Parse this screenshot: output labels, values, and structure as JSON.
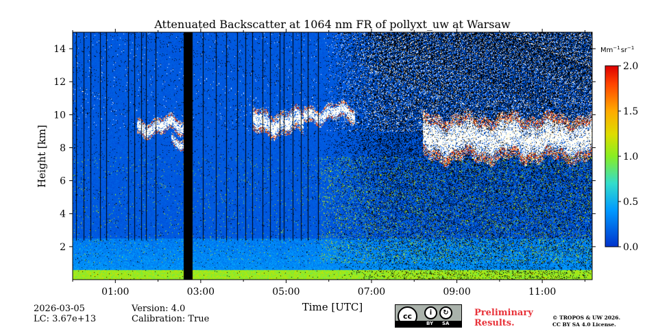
{
  "chart_data": {
    "type": "heatmap",
    "title": "Attenuated Backscatter at 1064 nm FR of pollyxt_uw at Warsaw",
    "xlabel": "Time [UTC]",
    "ylabel": "Height [km]",
    "xlim_hours": [
      0.0,
      12.17
    ],
    "ylim_km": [
      0,
      15
    ],
    "xticks": [
      {
        "value": 1,
        "label": "01:00"
      },
      {
        "value": 3,
        "label": "03:00"
      },
      {
        "value": 5,
        "label": "05:00"
      },
      {
        "value": 7,
        "label": "07:00"
      },
      {
        "value": 9,
        "label": "09:00"
      },
      {
        "value": 11,
        "label": "11:00"
      }
    ],
    "yticks": [
      {
        "value": 2,
        "label": "2"
      },
      {
        "value": 4,
        "label": "4"
      },
      {
        "value": 6,
        "label": "6"
      },
      {
        "value": 8,
        "label": "8"
      },
      {
        "value": 10,
        "label": "10"
      },
      {
        "value": 12,
        "label": "12"
      },
      {
        "value": 14,
        "label": "14"
      }
    ],
    "colorbar": {
      "unit_label": "Mm",
      "unit_label_exp1": "−1",
      "unit_label_mid": "sr",
      "unit_label_exp2": "−1",
      "range": [
        0.0,
        2.0
      ],
      "ticks": [
        {
          "value": 0.0,
          "label": "0.0"
        },
        {
          "value": 0.5,
          "label": "0.5"
        },
        {
          "value": 1.0,
          "label": "1.0"
        },
        {
          "value": 1.5,
          "label": "1.5"
        },
        {
          "value": 2.0,
          "label": "2.0"
        }
      ]
    },
    "features": {
      "boundary_layer_km": [
        0.0,
        0.6
      ],
      "night_dark_columns_hours": [
        0.08,
        0.25,
        0.42,
        0.65,
        0.78,
        1.3,
        1.45,
        1.6,
        1.72,
        1.95,
        3.05,
        3.35,
        3.6,
        3.85,
        4.05,
        4.2,
        4.45,
        4.62,
        4.85,
        4.95,
        5.15,
        5.35,
        5.5,
        5.75
      ],
      "data_gap_hours": [
        2.6,
        2.8
      ],
      "daylight_noise_start_hours": 5.8,
      "cirrus_clouds": [
        {
          "start": 1.5,
          "end": 2.6,
          "base_km": 8.8,
          "top_km": 9.8
        },
        {
          "start": 2.3,
          "end": 2.6,
          "base_km": 7.9,
          "top_km": 8.6
        },
        {
          "start": 4.2,
          "end": 5.4,
          "base_km": 8.8,
          "top_km": 10.3
        },
        {
          "start": 5.4,
          "end": 6.6,
          "base_km": 9.6,
          "top_km": 10.6
        },
        {
          "start": 8.2,
          "end": 12.17,
          "base_km": 7.2,
          "top_km": 10.0
        }
      ]
    }
  },
  "footer": {
    "date": "2026-03-05",
    "lc": "LC: 3.67e+13",
    "version": "Version: 4.0",
    "calibration": "Calibration: True",
    "preliminary_line1": "Preliminary",
    "preliminary_line2": "Results.",
    "copyright_line1": "© TROPOS & UW 2026.",
    "copyright_line2": "CC BY SA 4.0 License.",
    "license_badge": {
      "cc": "cc",
      "by": "BY",
      "sa": "SA",
      "by_symbol": "i",
      "sa_symbol": "↻"
    }
  }
}
